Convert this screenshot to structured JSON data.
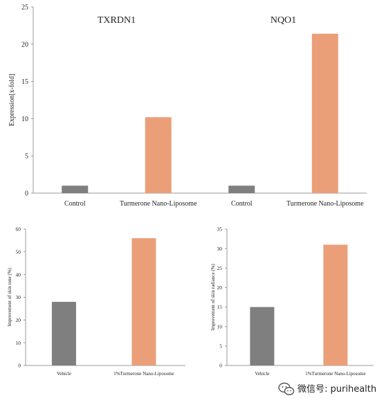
{
  "colors": {
    "control_bar": "#7f7f7f",
    "treatment_bar": "#ea9f79",
    "axis": "#9a9a9a",
    "text": "#222222"
  },
  "watermark": {
    "icon": "wechat-icon",
    "text": "微信号: purihealth"
  },
  "chart_data": [
    {
      "type": "bar",
      "ylabel": "Expression[x-fold]",
      "ylim": [
        0,
        25
      ],
      "yticks": [
        "0",
        "5",
        "10",
        "15",
        "20",
        "25"
      ],
      "groups": [
        {
          "title": "TXRDN1",
          "categories": [
            "Control",
            "Turmerone Nano-Liposome"
          ],
          "values": [
            1.0,
            10.2
          ]
        },
        {
          "title": "NQO1",
          "categories": [
            "Control",
            "Turmerone Nano-Liposome"
          ],
          "values": [
            1.0,
            21.4
          ]
        }
      ]
    },
    {
      "type": "bar",
      "ylabel": "Improvement of skin tone (%)",
      "ylim": [
        0,
        60
      ],
      "yticks": [
        "0",
        "10",
        "20",
        "30",
        "40",
        "50",
        "60"
      ],
      "categories": [
        "Vehicle",
        "1%Turmerone Nano-Liposome"
      ],
      "values": [
        28,
        56
      ]
    },
    {
      "type": "bar",
      "ylabel": "Improvement of skin radiance (%)",
      "ylim": [
        0,
        35
      ],
      "yticks": [
        "0",
        "5",
        "10",
        "15",
        "20",
        "25",
        "30",
        "35"
      ],
      "categories": [
        "Vehicle",
        "1%Turmerone Nano-Liposome"
      ],
      "values": [
        15,
        31
      ]
    }
  ]
}
